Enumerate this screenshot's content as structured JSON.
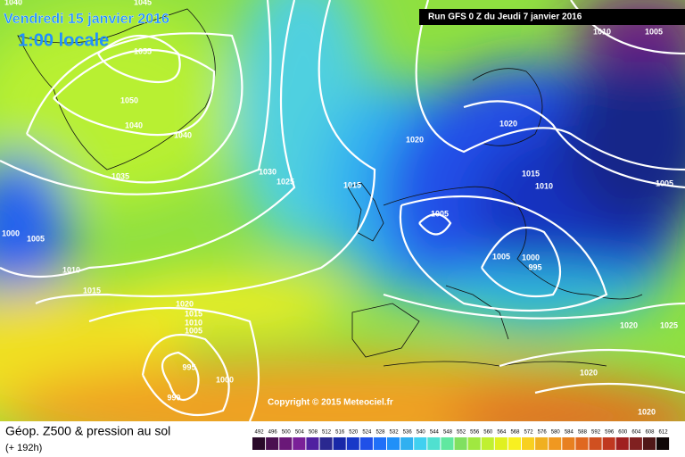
{
  "header": {
    "date": "Vendredi 15 janvier 2016",
    "time": "1:00 locale",
    "run": "Run GFS 0 Z du Jeudi 7 janvier 2016"
  },
  "copyright": "Copyright © 2015 Meteociel.fr",
  "footer": {
    "title": "Géop. Z500 & pression au sol",
    "subtitle": "(+ 192h)"
  },
  "isobar_labels": [
    "1045",
    "1040",
    "1055",
    "1050",
    "1040",
    "1040",
    "1035",
    "1030",
    "1025",
    "1020",
    "1015",
    "1010",
    "1005",
    "1020",
    "1015",
    "1010",
    "1005",
    "1005",
    "1005",
    "1000",
    "995",
    "1000",
    "1005",
    "1010",
    "1015",
    "1020",
    "1015",
    "1010",
    "1005",
    "995",
    "990",
    "1000",
    "1020",
    "1025",
    "1020",
    "1020"
  ],
  "scale": {
    "labels": [
      492,
      496,
      500,
      504,
      508,
      512,
      516,
      520,
      524,
      528,
      532,
      536,
      540,
      544,
      548,
      552,
      556,
      560,
      564,
      568,
      572,
      576,
      580,
      584,
      588,
      592,
      596,
      600,
      604,
      608,
      612
    ],
    "colors": [
      "#2a0a2a",
      "#4a1050",
      "#6a1878",
      "#7a2098",
      "#5020a0",
      "#2a2890",
      "#1828a8",
      "#1838c8",
      "#2050e8",
      "#2070f8",
      "#2090f8",
      "#30b0f0",
      "#40d0f0",
      "#50e0d0",
      "#60e8a0",
      "#80e060",
      "#a0e840",
      "#c0f030",
      "#e0f020",
      "#f8f020",
      "#f8d020",
      "#f0b020",
      "#f09820",
      "#e88020",
      "#e06820",
      "#d05020",
      "#c03820",
      "#a02020",
      "#802020",
      "#501818",
      "#100808"
    ]
  }
}
